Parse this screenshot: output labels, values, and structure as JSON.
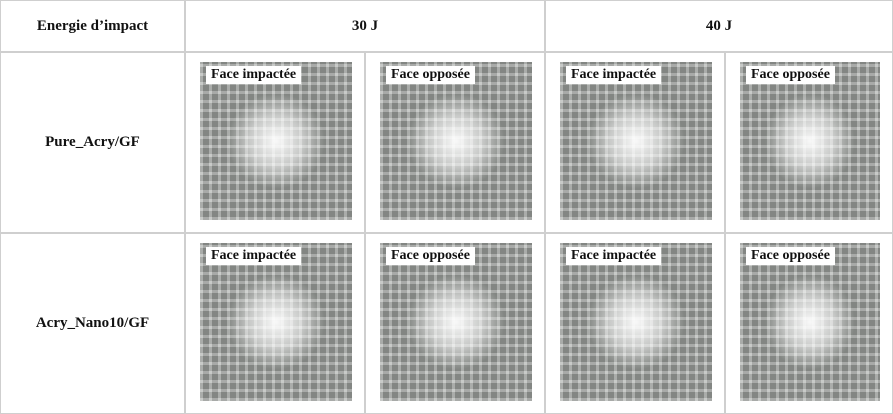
{
  "table": {
    "header": [
      "Energie d’impact",
      "30 J",
      "40 J"
    ],
    "rows": [
      {
        "label": "Pure_Acry/GF",
        "images": [
          "Face impactée",
          "Face opposée",
          "Face impactée",
          "Face opposée"
        ]
      },
      {
        "label": "Acry_Nano10/GF",
        "images": [
          "Face impactée",
          "Face opposée",
          "Face impactée",
          "Face opposée"
        ]
      }
    ]
  }
}
